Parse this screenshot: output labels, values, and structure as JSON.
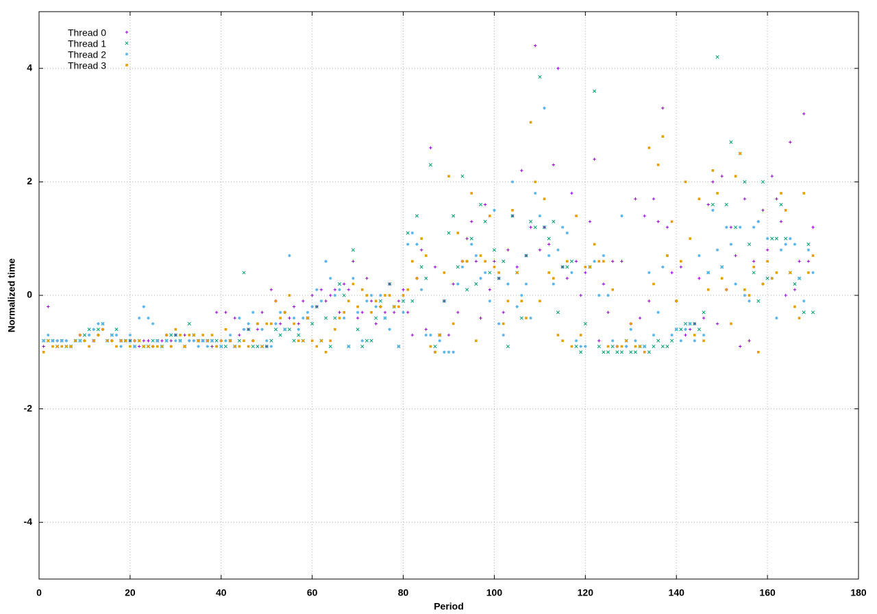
{
  "chart_data": {
    "type": "scatter",
    "x_label": "Period",
    "y_label": "Normalized time",
    "xlim": [
      0,
      180
    ],
    "xticks": [
      0,
      20,
      40,
      60,
      80,
      100,
      120,
      140,
      160,
      180
    ],
    "ylim": [
      -5,
      5
    ],
    "yticks": [
      -4,
      -2,
      0,
      2,
      4
    ],
    "grid": true,
    "legend": "top-left",
    "x": [
      1,
      2,
      3,
      4,
      5,
      6,
      7,
      8,
      9,
      10,
      11,
      12,
      13,
      14,
      15,
      16,
      17,
      18,
      19,
      20,
      21,
      22,
      23,
      24,
      25,
      26,
      27,
      28,
      29,
      30,
      31,
      32,
      33,
      34,
      35,
      36,
      37,
      38,
      39,
      40,
      41,
      42,
      43,
      44,
      45,
      46,
      47,
      48,
      49,
      50,
      51,
      52,
      53,
      54,
      55,
      56,
      57,
      58,
      59,
      60,
      61,
      62,
      63,
      64,
      65,
      66,
      67,
      68,
      69,
      70,
      71,
      72,
      73,
      74,
      75,
      76,
      77,
      78,
      79,
      80,
      81,
      82,
      83,
      84,
      85,
      86,
      87,
      88,
      89,
      90,
      91,
      92,
      93,
      94,
      95,
      96,
      97,
      98,
      99,
      100,
      101,
      102,
      103,
      104,
      105,
      106,
      107,
      108,
      109,
      110,
      111,
      112,
      113,
      114,
      115,
      116,
      117,
      118,
      119,
      120,
      121,
      122,
      123,
      124,
      125,
      126,
      127,
      128,
      129,
      130,
      131,
      132,
      133,
      134,
      135,
      136,
      137,
      138,
      139,
      140,
      141,
      142,
      143,
      144,
      145,
      146,
      147,
      148,
      149,
      150,
      151,
      152,
      153,
      154,
      155,
      156,
      157,
      158,
      159,
      160,
      161,
      162,
      163,
      164,
      165,
      166,
      167,
      168,
      169,
      170
    ],
    "series": [
      {
        "name": "Thread 0",
        "color": "#9400d3",
        "marker": "plus",
        "values": [
          -0.9,
          -0.2,
          -0.8,
          -0.8,
          -0.8,
          -0.8,
          -0.9,
          -0.8,
          -0.7,
          -0.8,
          -0.7,
          -0.8,
          -0.7,
          -0.6,
          -0.8,
          -0.8,
          -0.7,
          -0.8,
          -0.8,
          -0.8,
          -0.8,
          -0.9,
          -0.8,
          -0.8,
          -0.9,
          -0.8,
          -0.8,
          -0.7,
          -0.8,
          -0.7,
          -0.8,
          -0.7,
          -0.8,
          -0.8,
          -0.8,
          -0.8,
          -0.8,
          -0.9,
          -0.3,
          -0.8,
          -0.3,
          -0.8,
          -0.4,
          -0.7,
          -0.6,
          -0.6,
          -0.8,
          -0.6,
          -0.3,
          -0.9,
          0.1,
          -0.1,
          -0.5,
          -0.3,
          -0.4,
          -0.2,
          -0.5,
          -0.1,
          -0.4,
          0.0,
          -0.2,
          0.1,
          -0.1,
          0.0,
          0.1,
          -0.3,
          0.2,
          0.1,
          0.6,
          -0.4,
          -0.3,
          0.3,
          -0.1,
          -0.5,
          -0.2,
          -0.3,
          0.2,
          -0.3,
          -0.1,
          0.1,
          -0.3,
          -0.7,
          0.3,
          0.8,
          -0.6,
          2.6,
          0.5,
          -0.7,
          -0.1,
          -0.7,
          0.2,
          -0.3,
          0.6,
          1.0,
          1.3,
          0.6,
          -0.4,
          1.6,
          0.1,
          0.6,
          0.3,
          -0.3,
          0.8,
          1.4,
          0.5,
          2.2,
          0.7,
          1.2,
          4.4,
          0.8,
          1.2,
          0.9,
          2.3,
          4.0,
          0.5,
          0.3,
          1.8,
          0.6,
          0.0,
          0.4,
          1.3,
          2.4,
          -0.8,
          0.2,
          -0.3,
          0.6,
          -0.9,
          0.6,
          -0.9,
          -0.5,
          1.7,
          -0.4,
          1.4,
          -0.1,
          1.7,
          1.3,
          3.3,
          1.2,
          0.4,
          -0.1,
          0.5,
          -0.7,
          -0.6,
          -0.5,
          0.3,
          -0.4,
          1.6,
          2.0,
          -0.5,
          2.1,
          0.1,
          1.2,
          0.7,
          -0.9,
          1.7,
          -0.8,
          0.6,
          1.3,
          1.5,
          0.8,
          2.1,
          1.7,
          1.3,
          0.0,
          2.7,
          0.1,
          0.6,
          3.2,
          0.6,
          1.2
        ]
      },
      {
        "name": "Thread 1",
        "color": "#009e73",
        "marker": "cross",
        "values": [
          -0.8,
          -0.8,
          -0.8,
          -0.9,
          -0.8,
          -0.9,
          -0.9,
          -0.8,
          -0.8,
          -0.7,
          -0.6,
          -0.8,
          -0.6,
          -0.5,
          -0.8,
          -0.7,
          -0.6,
          -0.8,
          -0.8,
          -0.8,
          -0.9,
          -0.8,
          -0.9,
          -0.9,
          -0.8,
          -0.8,
          -0.9,
          -0.8,
          -0.7,
          -0.7,
          -0.8,
          -0.9,
          -0.5,
          -0.7,
          -0.8,
          -0.8,
          -0.8,
          -0.8,
          -0.8,
          -0.9,
          -0.9,
          -0.8,
          -0.9,
          -0.8,
          0.4,
          -0.6,
          -0.9,
          -0.9,
          -0.9,
          -0.9,
          -0.8,
          -0.6,
          -0.7,
          -0.6,
          -0.6,
          -0.8,
          -0.7,
          -0.8,
          -0.4,
          -0.5,
          -0.2,
          -0.8,
          -0.4,
          -0.9,
          -0.4,
          0.2,
          0.0,
          -0.9,
          0.8,
          -0.6,
          -0.9,
          -0.8,
          -0.8,
          -0.4,
          -0.1,
          -0.4,
          0.2,
          -0.2,
          -0.9,
          -0.1,
          1.1,
          -0.1,
          1.4,
          0.5,
          0.3,
          2.3,
          -0.9,
          -0.7,
          -0.1,
          1.1,
          1.4,
          0.5,
          2.1,
          0.1,
          1.0,
          0.2,
          1.6,
          1.3,
          0.4,
          0.8,
          0.3,
          0.6,
          -0.9,
          1.4,
          0.4,
          -0.4,
          0.7,
          1.3,
          1.2,
          3.85,
          1.2,
          1.0,
          1.3,
          -0.3,
          0.5,
          0.5,
          0.6,
          -0.9,
          -1.0,
          -0.5,
          0.5,
          3.6,
          -0.9,
          -1.0,
          -1.0,
          -0.9,
          -1.0,
          -1.0,
          -0.8,
          -1.0,
          -1.0,
          -0.9,
          -0.9,
          -1.0,
          -0.9,
          -0.8,
          -0.9,
          -0.9,
          -0.8,
          -0.6,
          -0.6,
          -0.5,
          -0.5,
          -0.5,
          -0.6,
          -0.3,
          0.4,
          1.6,
          4.2,
          0.5,
          1.6,
          2.7,
          1.2,
          2.5,
          2.0,
          0.9,
          0.4,
          -0.1,
          2.0,
          0.3,
          1.0,
          1.0,
          1.6,
          1.0,
          0.4,
          0.2,
          0.3,
          -0.3,
          0.9,
          -0.3
        ]
      },
      {
        "name": "Thread 2",
        "color": "#56b4e9",
        "marker": "star",
        "values": [
          -0.8,
          -0.7,
          -0.8,
          -0.8,
          -0.8,
          -0.8,
          -0.9,
          -0.8,
          -0.8,
          -0.8,
          -0.7,
          -0.6,
          -0.5,
          -0.5,
          -0.8,
          -0.7,
          -0.7,
          -0.9,
          -0.8,
          -0.7,
          -0.9,
          -0.4,
          -0.2,
          -0.4,
          -0.5,
          -0.8,
          -0.9,
          -0.8,
          -0.9,
          -0.8,
          -0.8,
          -0.9,
          -0.8,
          -0.8,
          -0.9,
          -0.8,
          -0.9,
          -0.8,
          -0.9,
          -0.9,
          -0.8,
          -0.7,
          -0.9,
          -0.4,
          -0.6,
          -0.5,
          -0.3,
          -0.5,
          -0.6,
          -0.8,
          -0.9,
          -0.5,
          -0.3,
          -0.6,
          0.7,
          -0.4,
          -0.6,
          -0.4,
          -0.3,
          -0.2,
          0.1,
          -0.1,
          0.6,
          0.3,
          0.0,
          0.1,
          -0.4,
          -0.9,
          0.3,
          -0.3,
          -0.8,
          -0.1,
          0.0,
          -0.2,
          0.0,
          -0.4,
          -0.6,
          -0.2,
          -0.9,
          -0.3,
          0.9,
          1.1,
          0.9,
          0.1,
          -0.7,
          -0.7,
          -1.0,
          -0.8,
          -1.0,
          -1.0,
          -1.0,
          0.2,
          0.5,
          0.6,
          0.9,
          0.7,
          0.3,
          0.4,
          -0.1,
          1.5,
          -0.5,
          -0.7,
          0.2,
          2.0,
          -0.2,
          0.0,
          0.2,
          -0.4,
          1.8,
          1.4,
          3.3,
          0.7,
          0.2,
          0.8,
          1.2,
          1.1,
          0.4,
          -0.8,
          -0.9,
          -0.9,
          0.5,
          0.6,
          0.0,
          0.7,
          0.0,
          -0.8,
          -0.9,
          1.4,
          -0.9,
          -0.6,
          -0.8,
          -0.9,
          -0.9,
          0.4,
          -0.7,
          -0.3,
          0.5,
          0.7,
          -0.7,
          -0.6,
          -0.8,
          -0.6,
          -0.5,
          -0.8,
          0.7,
          -0.7,
          0.4,
          1.5,
          0.8,
          0.5,
          1.2,
          0.9,
          0.2,
          1.2,
          0.0,
          -0.1,
          1.2,
          1.3,
          0.2,
          1.0,
          0.3,
          -0.4,
          0.8,
          0.9,
          1.0,
          0.9,
          0.3,
          -0.1,
          0.8,
          0.4
        ]
      },
      {
        "name": "Thread 3",
        "color": "#e69f00",
        "marker": "square",
        "values": [
          -1.0,
          -0.8,
          -0.9,
          -0.9,
          -0.9,
          -0.9,
          -0.9,
          -0.8,
          -0.7,
          -0.8,
          -0.9,
          -0.8,
          -0.7,
          -0.6,
          -0.8,
          -0.8,
          -0.9,
          -0.8,
          -0.8,
          -0.9,
          -0.8,
          -0.8,
          -0.9,
          -0.9,
          -0.9,
          -0.9,
          -0.9,
          -0.7,
          -0.9,
          -0.6,
          -0.7,
          -0.9,
          -0.7,
          -0.7,
          -0.8,
          -0.7,
          -0.8,
          -0.7,
          -0.9,
          -0.8,
          -0.6,
          -0.8,
          -0.9,
          -0.9,
          -0.8,
          -0.9,
          -0.8,
          -0.5,
          -0.9,
          -0.5,
          -0.5,
          -0.1,
          -0.4,
          -0.3,
          0.0,
          -0.5,
          -0.8,
          -0.8,
          -0.4,
          -0.8,
          -0.9,
          -0.8,
          -1.0,
          -0.8,
          -0.6,
          -0.4,
          -0.3,
          -0.1,
          0.2,
          -0.2,
          0.1,
          0.0,
          -0.3,
          -0.1,
          -0.2,
          0.0,
          0.0,
          -0.2,
          -0.2,
          0.0,
          0.1,
          0.6,
          0.3,
          1.0,
          0.7,
          -0.9,
          -1.0,
          -0.7,
          0.4,
          2.1,
          -0.5,
          1.1,
          0.6,
          0.6,
          1.8,
          -0.8,
          0.7,
          0.6,
          1.4,
          0.5,
          0.4,
          -0.5,
          -0.1,
          1.5,
          0.4,
          -0.1,
          -0.4,
          3.05,
          2.0,
          -0.1,
          1.7,
          0.4,
          0.3,
          -0.7,
          -0.8,
          0.6,
          -0.9,
          1.4,
          -0.7,
          0.5,
          0.5,
          0.9,
          0.6,
          0.6,
          -0.9,
          0.1,
          -0.9,
          -0.9,
          -0.8,
          -0.5,
          -0.9,
          -0.9,
          -1.0,
          2.6,
          0.2,
          2.3,
          2.8,
          0.7,
          1.3,
          -0.1,
          0.6,
          2.0,
          1.0,
          -0.7,
          1.7,
          -0.8,
          0.1,
          2.2,
          1.8,
          0.3,
          0.1,
          -0.5,
          2.1,
          2.5,
          0.1,
          0.0,
          0.5,
          -1.0,
          0.2,
          0.6,
          0.3,
          0.4,
          1.8,
          1.5,
          0.4,
          -0.2,
          -0.4,
          1.8,
          0.4,
          0.7
        ]
      }
    ]
  }
}
